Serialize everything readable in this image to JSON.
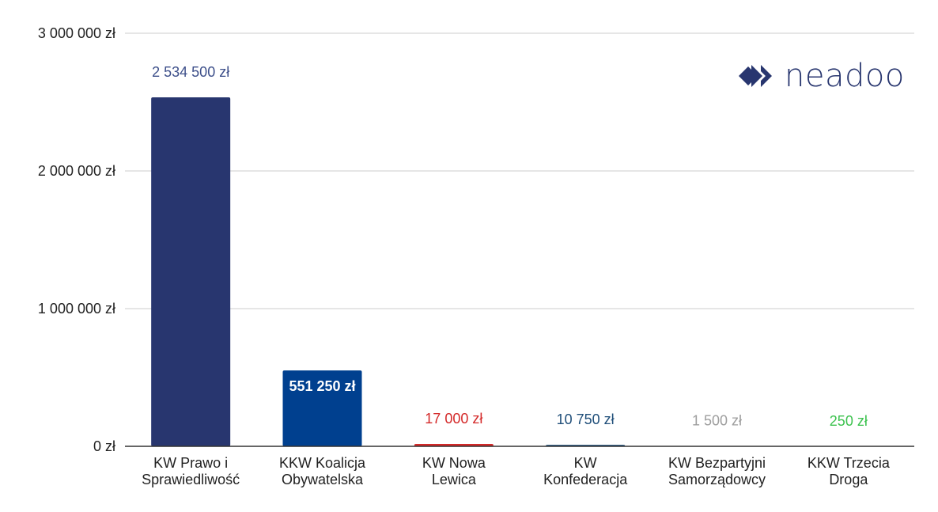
{
  "chart_data": {
    "type": "bar",
    "categories": [
      [
        "KW Prawo i",
        "Sprawiedliwość"
      ],
      [
        "KKW Koalicja",
        "Obywatelska"
      ],
      [
        "KW Nowa",
        "Lewica"
      ],
      [
        "KW",
        "Konfederacja"
      ],
      [
        "KW Bezpartyjni",
        "Samorządowcy"
      ],
      [
        "KKW Trzecia",
        "Droga"
      ]
    ],
    "values": [
      2534500,
      551250,
      17000,
      10750,
      1500,
      250
    ],
    "data_labels": [
      "2 534 500 zł",
      "551 250 zł",
      "17 000 zł",
      "10 750 zł",
      "1 500 zł",
      "250 zł"
    ],
    "bar_colors": [
      "#28366f",
      "#00408f",
      "#d42a2a",
      "#1f4e79",
      "#9e9e9e",
      "#3cc24e"
    ],
    "label_colors": [
      "#3d4f8a",
      "#ffffff",
      "#d42a2a",
      "#1f4e79",
      "#9e9e9e",
      "#3cc24e"
    ],
    "yticks": [
      0,
      1000000,
      2000000,
      3000000
    ],
    "ytick_labels": [
      "0 zł",
      "1 000 000 zł",
      "2 000 000 zł",
      "3 000 000 zł"
    ],
    "ylim": [
      0,
      3000000
    ],
    "grid": true,
    "title": "",
    "xlabel": "",
    "ylabel": ""
  },
  "logo": {
    "text": "neadoo",
    "color": "#28366f"
  }
}
